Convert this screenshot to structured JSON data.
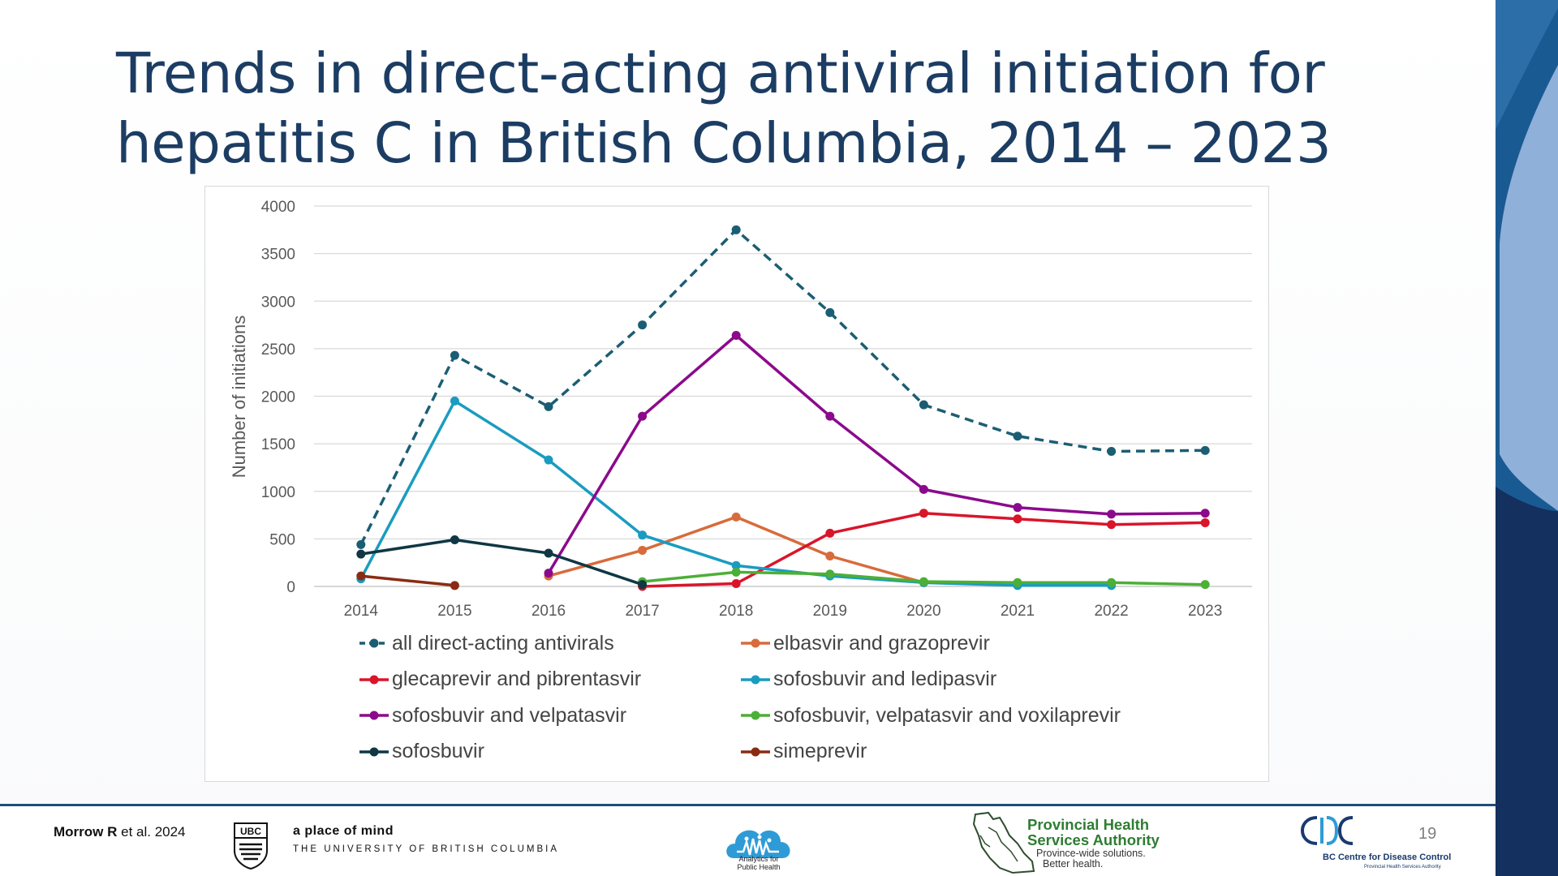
{
  "slide": {
    "title_line1": "Trends in direct-acting antiviral initiation for",
    "title_line2": "hepatitis C in British Columbia, 2014 – 2023",
    "page_number": "19"
  },
  "footer": {
    "citation_author": "Morrow R",
    "citation_rest": " et al. 2024",
    "ubc_crest_text": "UBC",
    "ubc_tagline": "a place of mind",
    "ubc_name": "THE UNIVERSITY OF BRITISH COLUMBIA",
    "aph_name_line1": "Analytics for",
    "aph_name_line2": "Public Health",
    "phsa_line1": "Provincial Health",
    "phsa_line2": "Services Authority",
    "phsa_line3": "Province-wide solutions.",
    "phsa_line4": "Better health.",
    "bccdc_name": "BC Centre for Disease Control",
    "bccdc_sub": "Provincial Health Services Authority"
  },
  "colors": {
    "title": "#1c3d63",
    "band_dark": "#1f4e79",
    "band_light": "#8fb0d9",
    "footer_rule": "#1f4e79"
  },
  "chart_data": {
    "type": "line",
    "title": "",
    "xlabel": "",
    "ylabel": "Number of initiations",
    "ylim": [
      0,
      4000
    ],
    "yticks": [
      0,
      500,
      1000,
      1500,
      2000,
      2500,
      3000,
      3500,
      4000
    ],
    "x": [
      2014,
      2015,
      2016,
      2017,
      2018,
      2019,
      2020,
      2021,
      2022,
      2023
    ],
    "grid": true,
    "legend_position": "bottom",
    "series": [
      {
        "name": "all direct-acting antivirals",
        "color": "#1b5e73",
        "dashed": true,
        "values": [
          440,
          2430,
          1890,
          2750,
          3750,
          2880,
          1910,
          1580,
          1420,
          1430
        ]
      },
      {
        "name": "elbasvir and grazoprevir",
        "color": "#d86b3b",
        "dashed": false,
        "values": [
          null,
          null,
          110,
          380,
          730,
          320,
          40,
          null,
          null,
          null
        ]
      },
      {
        "name": "glecaprevir and pibrentasvir",
        "color": "#d9152a",
        "dashed": false,
        "values": [
          null,
          null,
          null,
          0,
          30,
          560,
          770,
          710,
          650,
          670
        ]
      },
      {
        "name": "sofosbuvir and ledipasvir",
        "color": "#1a9cc0",
        "dashed": false,
        "values": [
          80,
          1950,
          1330,
          540,
          220,
          110,
          40,
          10,
          10,
          null
        ]
      },
      {
        "name": "sofosbuvir and velpatasvir",
        "color": "#8b0a8c",
        "dashed": false,
        "values": [
          null,
          null,
          140,
          1790,
          2640,
          1790,
          1020,
          830,
          760,
          770
        ]
      },
      {
        "name": "sofosbuvir, velpatasvir and voxilaprevir",
        "color": "#4caf37",
        "dashed": false,
        "values": [
          null,
          null,
          null,
          50,
          150,
          130,
          50,
          40,
          40,
          20
        ]
      },
      {
        "name": "sofosbuvir",
        "color": "#0f3744",
        "dashed": false,
        "values": [
          340,
          490,
          350,
          20,
          null,
          null,
          null,
          null,
          null,
          null
        ]
      },
      {
        "name": "simeprevir",
        "color": "#8a2c12",
        "dashed": false,
        "values": [
          110,
          10,
          null,
          null,
          null,
          null,
          null,
          null,
          null,
          null
        ]
      }
    ]
  }
}
